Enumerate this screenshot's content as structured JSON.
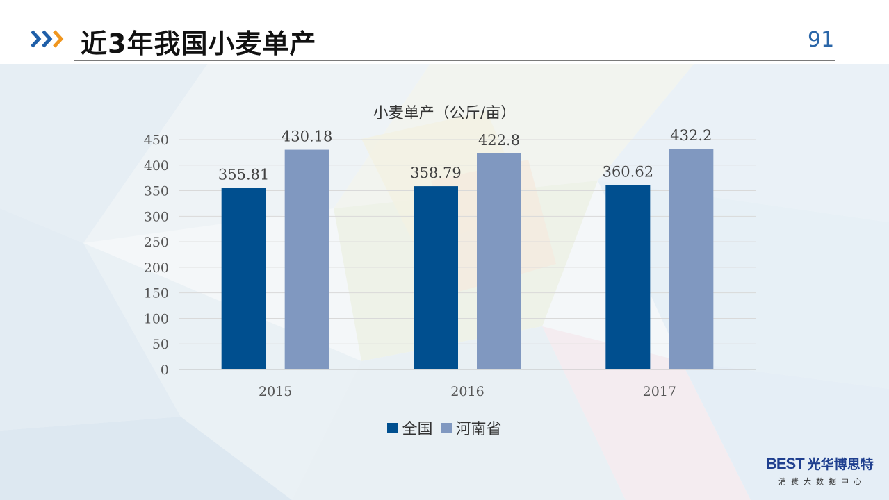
{
  "slide": {
    "title": "近3年我国小麦单产",
    "page_number": "91"
  },
  "logo": {
    "brand": "BEST",
    "brand_cn": "光华博思特",
    "subtitle": "消费大数据中心"
  },
  "colors": {
    "series_1": "#004f8f",
    "series_2": "#8098c0",
    "chevron_blue": "#1f5fa8",
    "chevron_orange": "#f0961e"
  },
  "chart_data": {
    "type": "bar",
    "title": "小麦单产（公斤/亩）",
    "categories": [
      "2015",
      "2016",
      "2017"
    ],
    "series": [
      {
        "name": "全国",
        "values": [
          355.81,
          358.79,
          360.62
        ],
        "labels": [
          "355.81",
          "358.79",
          "360.62"
        ]
      },
      {
        "name": "河南省",
        "values": [
          430.18,
          422.8,
          432.2
        ],
        "labels": [
          "430.18",
          "422.8",
          "432.2"
        ]
      }
    ],
    "ylim": [
      0,
      450
    ],
    "yticks": [
      "0",
      "50",
      "100",
      "150",
      "200",
      "250",
      "300",
      "350",
      "400",
      "450"
    ],
    "grid": true,
    "legend_position": "bottom"
  }
}
